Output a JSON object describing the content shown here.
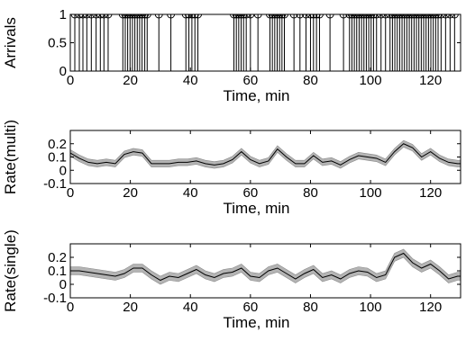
{
  "chart_data": [
    {
      "type": "stem",
      "ylabel": "Arrivals",
      "xlabel": "Time, min",
      "xlim": [
        0,
        130
      ],
      "ylim": [
        0,
        1
      ],
      "xticks": [
        "0",
        "20",
        "40",
        "60",
        "80",
        "100",
        "120"
      ],
      "yticks": [
        "0",
        "0.5",
        "1"
      ],
      "arrival_times": [
        1.5,
        3.0,
        4.2,
        5.5,
        7.0,
        8.6,
        10.0,
        11.2,
        12.6,
        17.5,
        18.3,
        19.1,
        19.9,
        20.7,
        21.5,
        22.3,
        23.1,
        23.9,
        24.8,
        25.6,
        29.5,
        33.5,
        38.5,
        39.5,
        40.5,
        41.5,
        42.5,
        54.5,
        55.3,
        56.1,
        56.9,
        57.7,
        58.6,
        60.0,
        62.5,
        66.5,
        67.3,
        68.1,
        68.9,
        69.7,
        70.5,
        71.3,
        74.5,
        76.5,
        78.5,
        80.0,
        81.0,
        82.0,
        83.0,
        86.5,
        91.0,
        93.0,
        93.8,
        94.6,
        95.4,
        96.2,
        97.0,
        97.8,
        98.6,
        99.4,
        100.2,
        101.0,
        102.0,
        103.5,
        105.0,
        106.5,
        107.3,
        108.1,
        108.9,
        109.7,
        110.5,
        111.3,
        112.1,
        112.9,
        113.7,
        114.5,
        115.3,
        116.1,
        116.9,
        117.7,
        118.5,
        119.3,
        120.1,
        120.9,
        121.7,
        122.5,
        123.5,
        125.0,
        126.5,
        128.0
      ]
    },
    {
      "type": "line",
      "ylabel": "Rate(multi)",
      "xlabel": "Time, min",
      "xlim": [
        0,
        130
      ],
      "ylim": [
        -0.1,
        0.3
      ],
      "xticks": [
        "0",
        "20",
        "40",
        "60",
        "80",
        "100",
        "120"
      ],
      "yticks": [
        "-0.1",
        "0",
        "0.1",
        "0.2"
      ],
      "band_halfwidth": 0.025,
      "x": [
        0,
        3,
        6,
        9,
        12,
        15,
        18,
        21,
        24,
        27,
        30,
        33,
        36,
        39,
        42,
        45,
        48,
        51,
        54,
        57,
        60,
        63,
        66,
        69,
        72,
        75,
        78,
        81,
        84,
        87,
        90,
        93,
        96,
        99,
        102,
        105,
        108,
        111,
        114,
        117,
        120,
        123,
        126,
        129,
        130
      ],
      "y": [
        0.13,
        0.09,
        0.06,
        0.05,
        0.06,
        0.05,
        0.12,
        0.14,
        0.13,
        0.05,
        0.05,
        0.05,
        0.06,
        0.06,
        0.07,
        0.05,
        0.04,
        0.05,
        0.08,
        0.14,
        0.08,
        0.05,
        0.07,
        0.16,
        0.1,
        0.05,
        0.05,
        0.11,
        0.06,
        0.07,
        0.04,
        0.08,
        0.11,
        0.1,
        0.09,
        0.06,
        0.14,
        0.2,
        0.17,
        0.1,
        0.14,
        0.09,
        0.06,
        0.05,
        0.05
      ]
    },
    {
      "type": "line",
      "ylabel": "Rate(single)",
      "xlabel": "Time, min",
      "xlim": [
        0,
        130
      ],
      "ylim": [
        -0.1,
        0.3
      ],
      "xticks": [
        "0",
        "20",
        "40",
        "60",
        "80",
        "100",
        "120"
      ],
      "yticks": [
        "-0.1",
        "0",
        "0.1",
        "0.2"
      ],
      "band_halfwidth": 0.03,
      "x": [
        0,
        3,
        6,
        9,
        12,
        15,
        18,
        21,
        24,
        27,
        30,
        33,
        36,
        39,
        42,
        45,
        48,
        51,
        54,
        57,
        60,
        63,
        66,
        69,
        72,
        75,
        78,
        81,
        84,
        87,
        90,
        93,
        96,
        99,
        102,
        105,
        108,
        111,
        114,
        117,
        120,
        123,
        126,
        129,
        130
      ],
      "y": [
        0.1,
        0.1,
        0.09,
        0.08,
        0.07,
        0.06,
        0.08,
        0.12,
        0.12,
        0.07,
        0.03,
        0.06,
        0.05,
        0.08,
        0.11,
        0.07,
        0.05,
        0.08,
        0.09,
        0.12,
        0.06,
        0.05,
        0.1,
        0.12,
        0.08,
        0.04,
        0.08,
        0.11,
        0.05,
        0.07,
        0.04,
        0.08,
        0.1,
        0.09,
        0.05,
        0.07,
        0.2,
        0.23,
        0.16,
        0.12,
        0.15,
        0.1,
        0.04,
        0.06,
        0.06
      ]
    }
  ]
}
